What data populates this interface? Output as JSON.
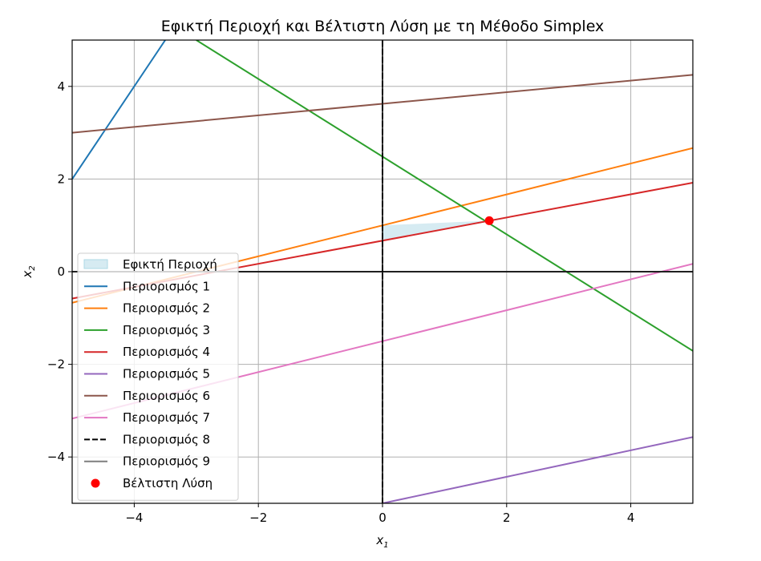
{
  "chart_data": {
    "type": "line",
    "title": "Εφικτή Περιοχή και Βέλτιστη Λύση με τη Μέθοδο Simplex",
    "xlabel": "x",
    "xlabel_sub": "1",
    "ylabel": "x",
    "ylabel_sub": "2",
    "xlim": [
      -5,
      5
    ],
    "ylim": [
      -5,
      5
    ],
    "xticks": [
      -4,
      -2,
      0,
      2,
      4
    ],
    "yticks": [
      -4,
      -2,
      0,
      2,
      4
    ],
    "xtick_labels": [
      "−4",
      "−2",
      "0",
      "2",
      "4"
    ],
    "ytick_labels": [
      "−4",
      "−2",
      "0",
      "2",
      "4"
    ],
    "grid": true,
    "legend_position": "lower-left",
    "feasible_region": {
      "name": "Εφικτή Περιοχή",
      "color": "#add8e6",
      "polygon": [
        [
          0,
          0.67
        ],
        [
          0,
          1.0
        ],
        [
          1.72,
          1.1
        ]
      ]
    },
    "series": [
      {
        "name": "Περιορισμός 1",
        "color": "#1f77b4",
        "style": "solid",
        "points": [
          [
            -5,
            2.0
          ],
          [
            -3.5,
            5.0
          ]
        ]
      },
      {
        "name": "Περιορισμός 2",
        "color": "#ff7f0e",
        "style": "solid",
        "points": [
          [
            -5,
            -0.67
          ],
          [
            5,
            2.67
          ]
        ]
      },
      {
        "name": "Περιορισμός 3",
        "color": "#2ca02c",
        "style": "solid",
        "points": [
          [
            -3,
            5.0
          ],
          [
            5,
            -1.71
          ]
        ]
      },
      {
        "name": "Περιορισμός 4",
        "color": "#d62728",
        "style": "solid",
        "points": [
          [
            -5,
            -0.58
          ],
          [
            5,
            1.92
          ]
        ]
      },
      {
        "name": "Περιορισμός 5",
        "color": "#9467bd",
        "style": "solid",
        "points": [
          [
            0,
            -5.0
          ],
          [
            5,
            -3.57
          ]
        ]
      },
      {
        "name": "Περιορισμός 6",
        "color": "#8c564b",
        "style": "solid",
        "points": [
          [
            -5,
            3.0
          ],
          [
            5,
            4.25
          ]
        ]
      },
      {
        "name": "Περιορισμός 7",
        "color": "#e377c2",
        "style": "solid",
        "points": [
          [
            -5,
            -3.17
          ],
          [
            5,
            0.17
          ]
        ]
      },
      {
        "name": "Περιορισμός 8",
        "color": "#000000",
        "style": "dashed",
        "points": [
          [
            0,
            -5
          ],
          [
            0,
            5
          ]
        ]
      },
      {
        "name": "Περιορισμός 9",
        "color": "#7f7f7f",
        "style": "solid",
        "points": [
          [
            -5,
            0
          ],
          [
            5,
            0
          ]
        ]
      }
    ],
    "axis_lines": [
      {
        "color": "#000000",
        "points": [
          [
            -5,
            0
          ],
          [
            5,
            0
          ]
        ]
      },
      {
        "color": "#000000",
        "points": [
          [
            0,
            -5
          ],
          [
            0,
            5
          ]
        ]
      }
    ],
    "optimal_point": {
      "name": "Βέλτιστη Λύση",
      "color": "#ff0000",
      "x": 1.72,
      "y": 1.1
    }
  }
}
